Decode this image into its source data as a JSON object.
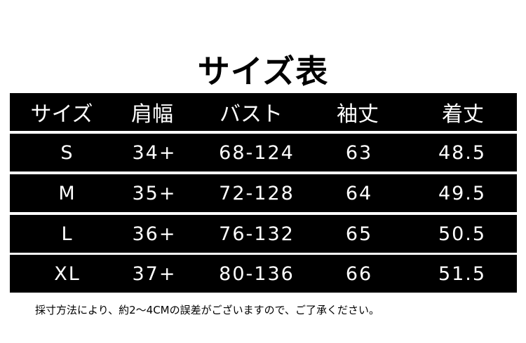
{
  "title": "サイズ表",
  "headers": [
    "サイズ",
    "肩幅",
    "バスト",
    "袖丈",
    "着丈"
  ],
  "rows": [
    [
      "S",
      "34+",
      "68-124",
      "63",
      "48.5"
    ],
    [
      "M",
      "35+",
      "72-128",
      "64",
      "49.5"
    ],
    [
      "L",
      "36+",
      "76-132",
      "65",
      "50.5"
    ],
    [
      "XL",
      "37+",
      "80-136",
      "66",
      "51.5"
    ]
  ],
  "note": "採寸方法により、約2～4CMの誤差がございますので、ご了承ください。"
}
